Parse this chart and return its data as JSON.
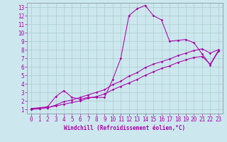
{
  "xlabel": "Windchill (Refroidissement éolien,°C)",
  "bg_color": "#cce8ee",
  "grid_color": "#aacccc",
  "line_color": "#aa00aa",
  "spine_color": "#8899aa",
  "xlim": [
    -0.5,
    23.5
  ],
  "ylim": [
    0.5,
    13.5
  ],
  "xticks": [
    0,
    1,
    2,
    3,
    4,
    5,
    6,
    7,
    8,
    9,
    10,
    11,
    12,
    13,
    14,
    15,
    16,
    17,
    18,
    19,
    20,
    21,
    22,
    23
  ],
  "yticks": [
    1,
    2,
    3,
    4,
    5,
    6,
    7,
    8,
    9,
    10,
    11,
    12,
    13
  ],
  "line1_x": [
    0,
    1,
    2,
    3,
    4,
    5,
    6,
    7,
    8,
    9,
    10,
    11,
    12,
    13,
    14,
    15,
    16,
    17,
    18,
    19,
    20,
    21,
    22,
    23
  ],
  "line1_y": [
    1.1,
    1.2,
    1.3,
    2.5,
    3.2,
    2.4,
    2.2,
    2.4,
    2.4,
    2.4,
    4.5,
    7.0,
    12.0,
    12.8,
    13.2,
    12.0,
    11.5,
    9.0,
    9.1,
    9.2,
    8.8,
    7.5,
    6.2,
    7.8
  ],
  "line2_x": [
    0,
    1,
    2,
    3,
    4,
    5,
    6,
    7,
    8,
    9,
    10,
    11,
    12,
    13,
    14,
    15,
    16,
    17,
    18,
    19,
    20,
    21,
    22,
    23
  ],
  "line2_y": [
    1.0,
    1.1,
    1.2,
    1.5,
    1.9,
    2.1,
    2.4,
    2.7,
    3.0,
    3.3,
    3.9,
    4.3,
    4.9,
    5.3,
    5.9,
    6.3,
    6.6,
    6.9,
    7.3,
    7.6,
    7.9,
    8.1,
    7.6,
    8.0
  ],
  "line3_x": [
    0,
    1,
    2,
    3,
    4,
    5,
    6,
    7,
    8,
    9,
    10,
    11,
    12,
    13,
    14,
    15,
    16,
    17,
    18,
    19,
    20,
    21,
    22,
    23
  ],
  "line3_y": [
    1.0,
    1.1,
    1.2,
    1.4,
    1.6,
    1.8,
    2.0,
    2.3,
    2.5,
    2.8,
    3.3,
    3.7,
    4.1,
    4.5,
    5.0,
    5.4,
    5.8,
    6.1,
    6.5,
    6.8,
    7.1,
    7.2,
    6.3,
    7.9
  ],
  "tick_fontsize": 5.5,
  "xlabel_fontsize": 5.5
}
